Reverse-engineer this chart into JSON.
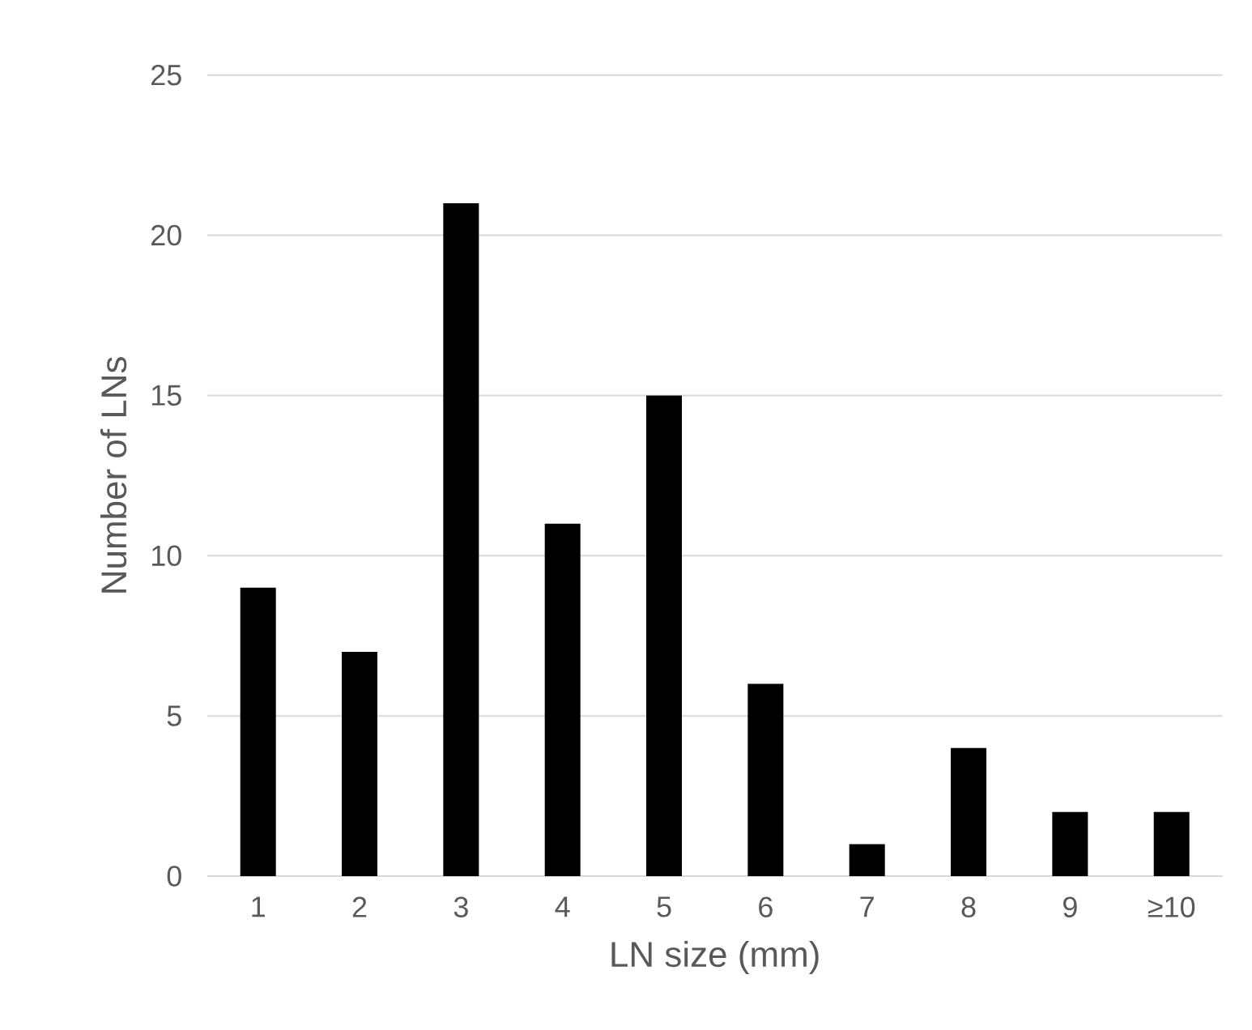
{
  "chart_data": {
    "type": "bar",
    "xlabel": "LN size (mm)",
    "ylabel": "Number of LNs",
    "categories": [
      "1",
      "2",
      "3",
      "4",
      "5",
      "6",
      "7",
      "8",
      "9",
      "≥10"
    ],
    "values": [
      9,
      7,
      21,
      11,
      15,
      6,
      1,
      4,
      2,
      2
    ],
    "color": "#000000",
    "ylim": [
      0,
      25
    ],
    "yticks": [
      0,
      5,
      10,
      15,
      20,
      25
    ],
    "grid": "y"
  }
}
